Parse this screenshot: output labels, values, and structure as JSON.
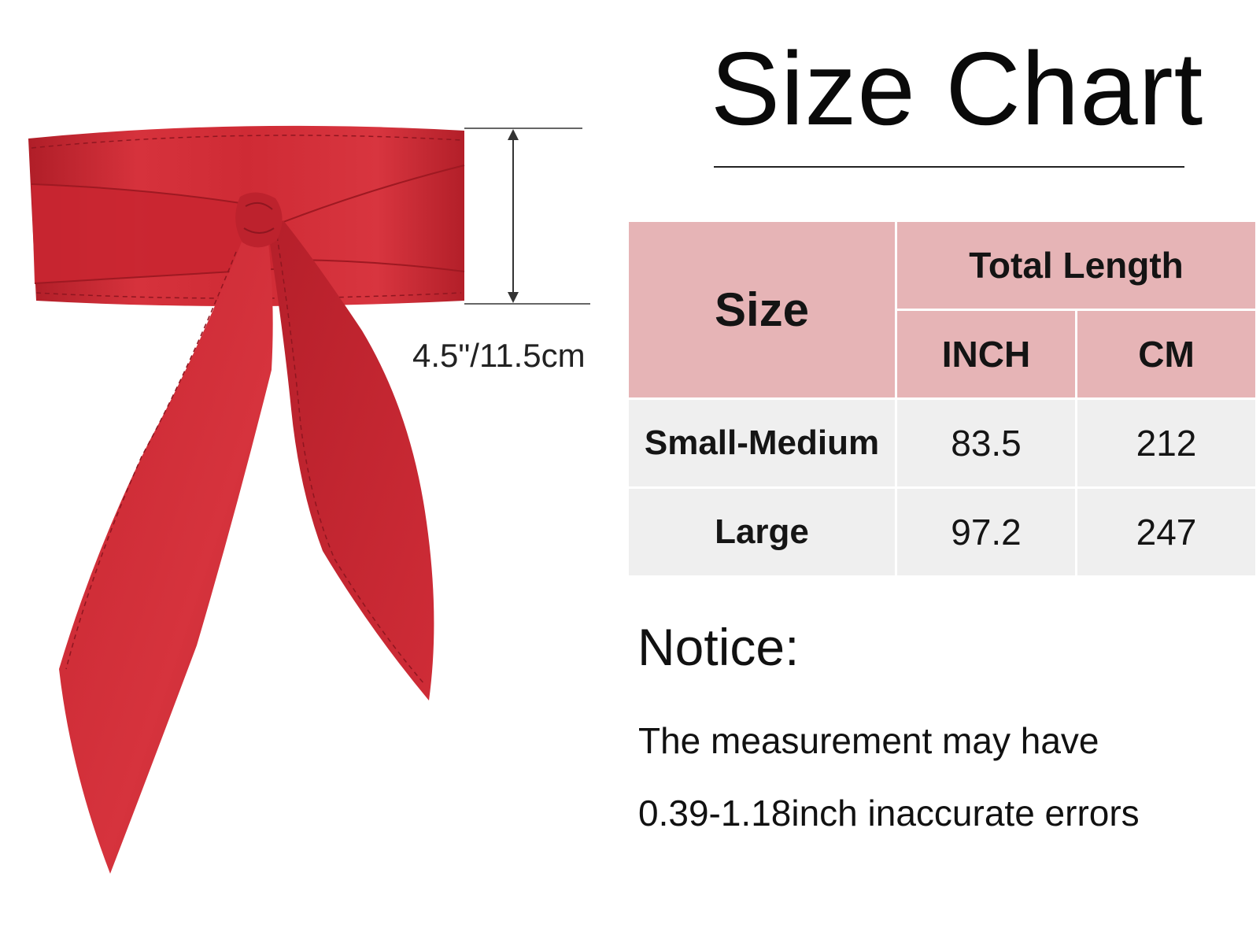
{
  "title": "Size Chart",
  "width_label": "4.5\"/11.5cm",
  "product_color": "#c8252f",
  "header_color": "#e6b4b6",
  "row_color": "#efefef",
  "table": {
    "header_size": "Size",
    "header_total": "Total Length",
    "header_inch": "INCH",
    "header_cm": "CM",
    "rows": [
      {
        "size": "Small-Medium",
        "inch": "83.5",
        "cm": "212"
      },
      {
        "size": "Large",
        "inch": "97.2",
        "cm": "247"
      }
    ]
  },
  "notice": {
    "heading": "Notice:",
    "line1": "The measurement may have",
    "line2": "0.39-1.18inch inaccurate errors"
  }
}
